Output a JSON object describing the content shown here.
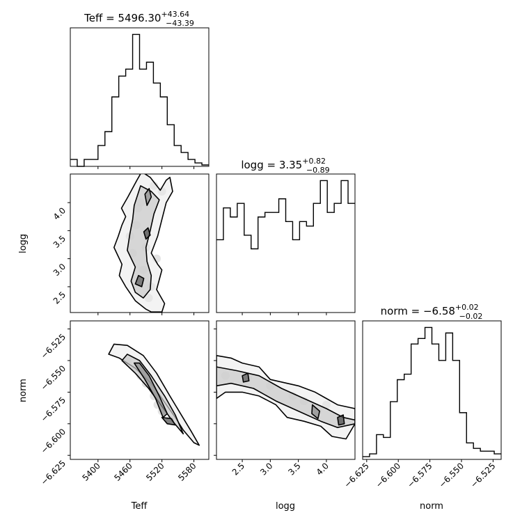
{
  "chart_data": {
    "type": "corner",
    "parameters": [
      "Teff",
      "logg",
      "norm"
    ],
    "titles": [
      {
        "param": "Teff",
        "prefix": "Teff = ",
        "value": "5496.30",
        "plus": "+43.64",
        "minus": "−43.39"
      },
      {
        "param": "logg",
        "prefix": "logg = ",
        "value": "3.35",
        "plus": "+0.82",
        "minus": "−0.89"
      },
      {
        "param": "norm",
        "prefix": "norm = ",
        "value": "−6.58",
        "plus": "+0.02",
        "minus": "−0.02"
      }
    ],
    "axis_labels": {
      "x": [
        "Teff",
        "logg",
        "norm"
      ],
      "y_logg": "logg",
      "y_norm": "norm"
    },
    "ranges": {
      "Teff": [
        5348,
        5608
      ],
      "logg": [
        2.04,
        4.51
      ],
      "norm": [
        -6.6282,
        -6.5186
      ]
    },
    "ticks": {
      "Teff": [
        {
          "v": 5400,
          "label": "5400"
        },
        {
          "v": 5460,
          "label": "5460"
        },
        {
          "v": 5520,
          "label": "5520"
        },
        {
          "v": 5580,
          "label": "5580"
        }
      ],
      "logg": [
        {
          "v": 2.5,
          "label": "2.5"
        },
        {
          "v": 3.0,
          "label": "3.0"
        },
        {
          "v": 3.5,
          "label": "3.5"
        },
        {
          "v": 4.0,
          "label": "4.0"
        }
      ],
      "norm": [
        {
          "v": -6.625,
          "label": "−6.625"
        },
        {
          "v": -6.6,
          "label": "−6.600"
        },
        {
          "v": -6.575,
          "label": "−6.575"
        },
        {
          "v": -6.55,
          "label": "−6.550"
        },
        {
          "v": -6.525,
          "label": "−6.525"
        }
      ]
    },
    "histograms": {
      "Teff": [
        1,
        0,
        1,
        1,
        3,
        5,
        10,
        13,
        14,
        19,
        14,
        15,
        12,
        10,
        6,
        3,
        2,
        1,
        0.5,
        0.2
      ],
      "logg": [
        8,
        11.5,
        10.5,
        12,
        8.5,
        7,
        10.5,
        11,
        11,
        12.5,
        10,
        8,
        10,
        9.5,
        12,
        14.5,
        11,
        12,
        14.5,
        12
      ],
      "norm": [
        0.5,
        1,
        4.5,
        4,
        10.5,
        14.5,
        15.5,
        21,
        22,
        24,
        21,
        18,
        23,
        18,
        8.5,
        3,
        2,
        1.5,
        1.5,
        1
      ]
    },
    "joint": [
      {
        "x": "Teff",
        "y": "logg",
        "contours": [
          [
            [
              5456,
              4.1
            ],
            [
              5473,
              4.4
            ],
            [
              5482,
              4.55
            ],
            [
              5498,
              4.45
            ],
            [
              5517,
              4.22
            ],
            [
              5528,
              4.4
            ],
            [
              5535,
              4.45
            ],
            [
              5540,
              4.2
            ],
            [
              5528,
              4.0
            ],
            [
              5520,
              3.7
            ],
            [
              5512,
              3.4
            ],
            [
              5500,
              3.1
            ],
            [
              5512,
              2.9
            ],
            [
              5520,
              2.8
            ],
            [
              5510,
              2.45
            ],
            [
              5525,
              2.2
            ],
            [
              5520,
              2.05
            ],
            [
              5500,
              2.05
            ],
            [
              5490,
              2.1
            ],
            [
              5470,
              2.25
            ],
            [
              5452,
              2.5
            ],
            [
              5440,
              2.7
            ],
            [
              5445,
              2.9
            ],
            [
              5430,
              3.2
            ],
            [
              5438,
              3.4
            ],
            [
              5445,
              3.6
            ],
            [
              5452,
              3.75
            ],
            [
              5444,
              3.9
            ]
          ],
          [
            [
              5468,
              3.95
            ],
            [
              5480,
              4.3
            ],
            [
              5500,
              4.2
            ],
            [
              5515,
              4.05
            ],
            [
              5505,
              3.8
            ],
            [
              5498,
              3.5
            ],
            [
              5490,
              3.2
            ],
            [
              5492,
              2.95
            ],
            [
              5500,
              2.7
            ],
            [
              5498,
              2.45
            ],
            [
              5485,
              2.3
            ],
            [
              5470,
              2.4
            ],
            [
              5462,
              2.6
            ],
            [
              5470,
              2.85
            ],
            [
              5455,
              3.15
            ],
            [
              5460,
              3.45
            ],
            [
              5465,
              3.7
            ]
          ],
          [
            [
              5488,
              4.15
            ],
            [
              5496,
              4.25
            ],
            [
              5500,
              4.1
            ],
            [
              5492,
              3.95
            ]
          ],
          [
            [
              5470,
              2.55
            ],
            [
              5482,
              2.5
            ],
            [
              5486,
              2.65
            ],
            [
              5476,
              2.7
            ]
          ],
          [
            [
              5490,
              3.35
            ],
            [
              5498,
              3.42
            ],
            [
              5494,
              3.55
            ],
            [
              5486,
              3.48
            ]
          ]
        ],
        "blobs": [
          [
            5472,
            3.6
          ],
          [
            5490,
            3.2
          ],
          [
            5500,
            2.5
          ],
          [
            5480,
            4.0
          ],
          [
            5510,
            3.0
          ],
          [
            5495,
            2.3
          ],
          [
            5465,
            3.1
          ],
          [
            5520,
            4.2
          ],
          [
            5485,
            2.8
          ],
          [
            5475,
            3.9
          ],
          [
            5505,
            4.3
          ],
          [
            5460,
            3.4
          ]
        ]
      },
      {
        "x": "Teff",
        "y": "norm",
        "contours": [
          [
            [
              5420,
              -6.545
            ],
            [
              5440,
              -6.548
            ],
            [
              5470,
              -6.556
            ],
            [
              5500,
              -6.568
            ],
            [
              5525,
              -6.583
            ],
            [
              5545,
              -6.595
            ],
            [
              5560,
              -6.605
            ],
            [
              5580,
              -6.615
            ],
            [
              5590,
              -6.617
            ],
            [
              5575,
              -6.606
            ],
            [
              5555,
              -6.592
            ],
            [
              5535,
              -6.578
            ],
            [
              5510,
              -6.56
            ],
            [
              5485,
              -6.546
            ],
            [
              5455,
              -6.538
            ],
            [
              5430,
              -6.537
            ]
          ],
          [
            [
              5445,
              -6.55
            ],
            [
              5470,
              -6.56
            ],
            [
              5495,
              -6.572
            ],
            [
              5518,
              -6.585
            ],
            [
              5540,
              -6.598
            ],
            [
              5560,
              -6.608
            ],
            [
              5545,
              -6.593
            ],
            [
              5525,
              -6.578
            ],
            [
              5500,
              -6.562
            ],
            [
              5478,
              -6.55
            ],
            [
              5455,
              -6.545
            ]
          ],
          [
            [
              5468,
              -6.552
            ],
            [
              5488,
              -6.565
            ],
            [
              5508,
              -6.58
            ],
            [
              5522,
              -6.595
            ],
            [
              5530,
              -6.592
            ],
            [
              5515,
              -6.578
            ],
            [
              5496,
              -6.562
            ],
            [
              5478,
              -6.552
            ]
          ],
          [
            [
              5520,
              -6.595
            ],
            [
              5530,
              -6.6
            ],
            [
              5545,
              -6.601
            ],
            [
              5538,
              -6.596
            ]
          ]
        ],
        "blobs": [
          [
            5470,
            -6.556
          ],
          [
            5490,
            -6.568
          ],
          [
            5505,
            -6.578
          ],
          [
            5520,
            -6.59
          ],
          [
            5455,
            -6.55
          ],
          [
            5535,
            -6.597
          ],
          [
            5480,
            -6.562
          ],
          [
            5512,
            -6.585
          ]
        ]
      },
      {
        "x": "logg",
        "y": "norm",
        "contours": [
          [
            [
              2.04,
              -6.546
            ],
            [
              2.3,
              -6.548
            ],
            [
              2.5,
              -6.552
            ],
            [
              2.8,
              -6.555
            ],
            [
              3.0,
              -6.565
            ],
            [
              3.3,
              -6.568
            ],
            [
              3.5,
              -6.57
            ],
            [
              3.8,
              -6.575
            ],
            [
              4.0,
              -6.58
            ],
            [
              4.2,
              -6.585
            ],
            [
              4.51,
              -6.588
            ],
            [
              4.51,
              -6.6
            ],
            [
              4.35,
              -6.612
            ],
            [
              4.1,
              -6.61
            ],
            [
              3.9,
              -6.602
            ],
            [
              3.6,
              -6.598
            ],
            [
              3.3,
              -6.595
            ],
            [
              3.1,
              -6.585
            ],
            [
              2.8,
              -6.578
            ],
            [
              2.5,
              -6.575
            ],
            [
              2.2,
              -6.575
            ],
            [
              2.04,
              -6.58
            ]
          ],
          [
            [
              2.04,
              -6.555
            ],
            [
              2.4,
              -6.558
            ],
            [
              2.8,
              -6.562
            ],
            [
              3.2,
              -6.572
            ],
            [
              3.6,
              -6.58
            ],
            [
              4.0,
              -6.588
            ],
            [
              4.3,
              -6.595
            ],
            [
              4.51,
              -6.597
            ],
            [
              4.51,
              -6.6
            ],
            [
              4.2,
              -6.603
            ],
            [
              3.9,
              -6.598
            ],
            [
              3.5,
              -6.59
            ],
            [
              3.1,
              -6.582
            ],
            [
              2.7,
              -6.572
            ],
            [
              2.3,
              -6.568
            ],
            [
              2.04,
              -6.57
            ]
          ],
          [
            [
              3.75,
              -6.585
            ],
            [
              3.88,
              -6.59
            ],
            [
              3.85,
              -6.596
            ],
            [
              3.74,
              -6.592
            ]
          ],
          [
            [
              2.5,
              -6.562
            ],
            [
              2.6,
              -6.56
            ],
            [
              2.62,
              -6.566
            ],
            [
              2.52,
              -6.567
            ]
          ],
          [
            [
              4.2,
              -6.595
            ],
            [
              4.3,
              -6.593
            ],
            [
              4.32,
              -6.6
            ],
            [
              4.22,
              -6.601
            ]
          ]
        ],
        "blobs": [
          [
            3.85,
            -6.59
          ],
          [
            2.6,
            -6.563
          ],
          [
            4.25,
            -6.597
          ],
          [
            3.0,
            -6.57
          ],
          [
            3.4,
            -6.578
          ],
          [
            2.2,
            -6.562
          ],
          [
            4.0,
            -6.585
          ],
          [
            3.6,
            -6.582
          ]
        ]
      }
    ]
  }
}
